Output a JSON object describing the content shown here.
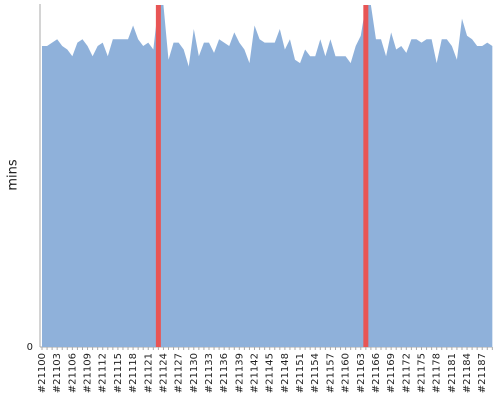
{
  "chart_data": {
    "type": "area",
    "y_label": "mins",
    "categories": [
      "#21100",
      null,
      null,
      "#21103",
      null,
      null,
      "#21106",
      null,
      null,
      "#21109",
      null,
      null,
      "#21112",
      null,
      null,
      "#21115",
      null,
      null,
      "#21118",
      null,
      null,
      "#21121",
      null,
      null,
      "#21124",
      null,
      null,
      "#21127",
      null,
      null,
      "#21130",
      null,
      null,
      "#21133",
      null,
      null,
      "#21136",
      null,
      null,
      "#21139",
      null,
      null,
      "#21142",
      null,
      null,
      "#21145",
      null,
      null,
      "#21148",
      null,
      null,
      "#21151",
      null,
      null,
      "#21154",
      null,
      null,
      "#21157",
      null,
      null,
      "#21160",
      null,
      null,
      "#21163",
      null,
      null,
      "#21166",
      null,
      null,
      "#21169",
      null,
      null,
      "#21172",
      null,
      null,
      "#21175",
      null,
      null,
      "#21178",
      null,
      null,
      "#21181",
      null,
      null,
      "#21184",
      null,
      null,
      "#21187",
      null,
      null
    ],
    "series": [
      {
        "type": "area",
        "color": "#8fb1da",
        "values": [
          88,
          88,
          89,
          90,
          88,
          87,
          85,
          89,
          90,
          88,
          85,
          88,
          89,
          85,
          90,
          90,
          90,
          90,
          94,
          90,
          88,
          89,
          87,
          100,
          100,
          84,
          89,
          89,
          87,
          82,
          93,
          85,
          89,
          89,
          86,
          90,
          89,
          88,
          92,
          89,
          87,
          83,
          94,
          90,
          89,
          89,
          89,
          93,
          87,
          90,
          84,
          83,
          87,
          85,
          85,
          90,
          85,
          90,
          85,
          85,
          85,
          83,
          88,
          91,
          100,
          100,
          90,
          90,
          85,
          92,
          87,
          88,
          86,
          90,
          90,
          89,
          90,
          90,
          83,
          90,
          90,
          88,
          84,
          96,
          91,
          90,
          88,
          88,
          89,
          88
        ]
      },
      {
        "type": "bar",
        "color": "#e85555",
        "values": [
          null,
          null,
          null,
          null,
          null,
          null,
          null,
          null,
          null,
          null,
          null,
          null,
          null,
          null,
          null,
          null,
          null,
          null,
          null,
          null,
          null,
          null,
          null,
          100,
          null,
          null,
          null,
          null,
          null,
          null,
          null,
          null,
          null,
          null,
          null,
          null,
          null,
          null,
          null,
          null,
          null,
          null,
          null,
          null,
          null,
          null,
          null,
          null,
          null,
          null,
          null,
          null,
          null,
          null,
          null,
          null,
          null,
          null,
          null,
          null,
          null,
          null,
          null,
          null,
          100,
          null,
          null,
          null,
          null,
          null,
          null,
          null,
          null,
          null,
          null,
          null,
          null,
          null,
          null,
          null,
          null,
          null,
          null,
          null,
          null,
          null,
          null,
          null,
          null,
          null
        ]
      }
    ],
    "ylim": [
      0,
      100
    ],
    "yticks": [
      0
    ]
  }
}
